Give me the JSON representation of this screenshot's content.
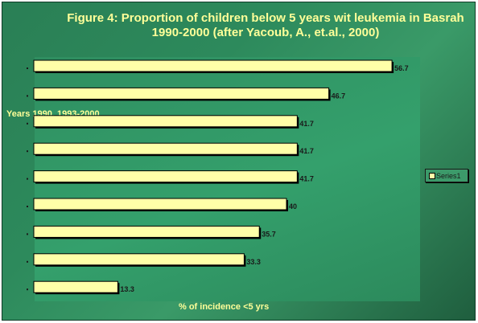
{
  "chart_data": {
    "type": "bar",
    "orientation": "horizontal",
    "title": "Figure 4: Proportion of children below 5 years wit leukemia in Basrah\n1990-2000 (after Yacoub, A., et.al., 2000)",
    "ylabel": "Years 1990, 1993-2000",
    "xlabel": "% of incidence <5 yrs",
    "values": [
      56.7,
      46.7,
      41.7,
      41.7,
      41.7,
      40,
      35.7,
      33.3,
      13.3
    ],
    "data_labels": [
      "56.7",
      "46.7",
      "41.7",
      "41.7",
      "41.7",
      "40",
      "35.7",
      "33.3",
      "13.3"
    ],
    "series": [
      {
        "name": "Series1",
        "values": [
          56.7,
          46.7,
          41.7,
          41.7,
          41.7,
          40,
          35.7,
          33.3,
          13.3
        ]
      }
    ],
    "xlim": [
      0,
      60
    ],
    "grid": false,
    "legend_position": "right",
    "colors": {
      "bar": "#ffffa8",
      "bar_border": "#000000",
      "label": "#1a1a1a",
      "text": "#ffff99"
    }
  }
}
